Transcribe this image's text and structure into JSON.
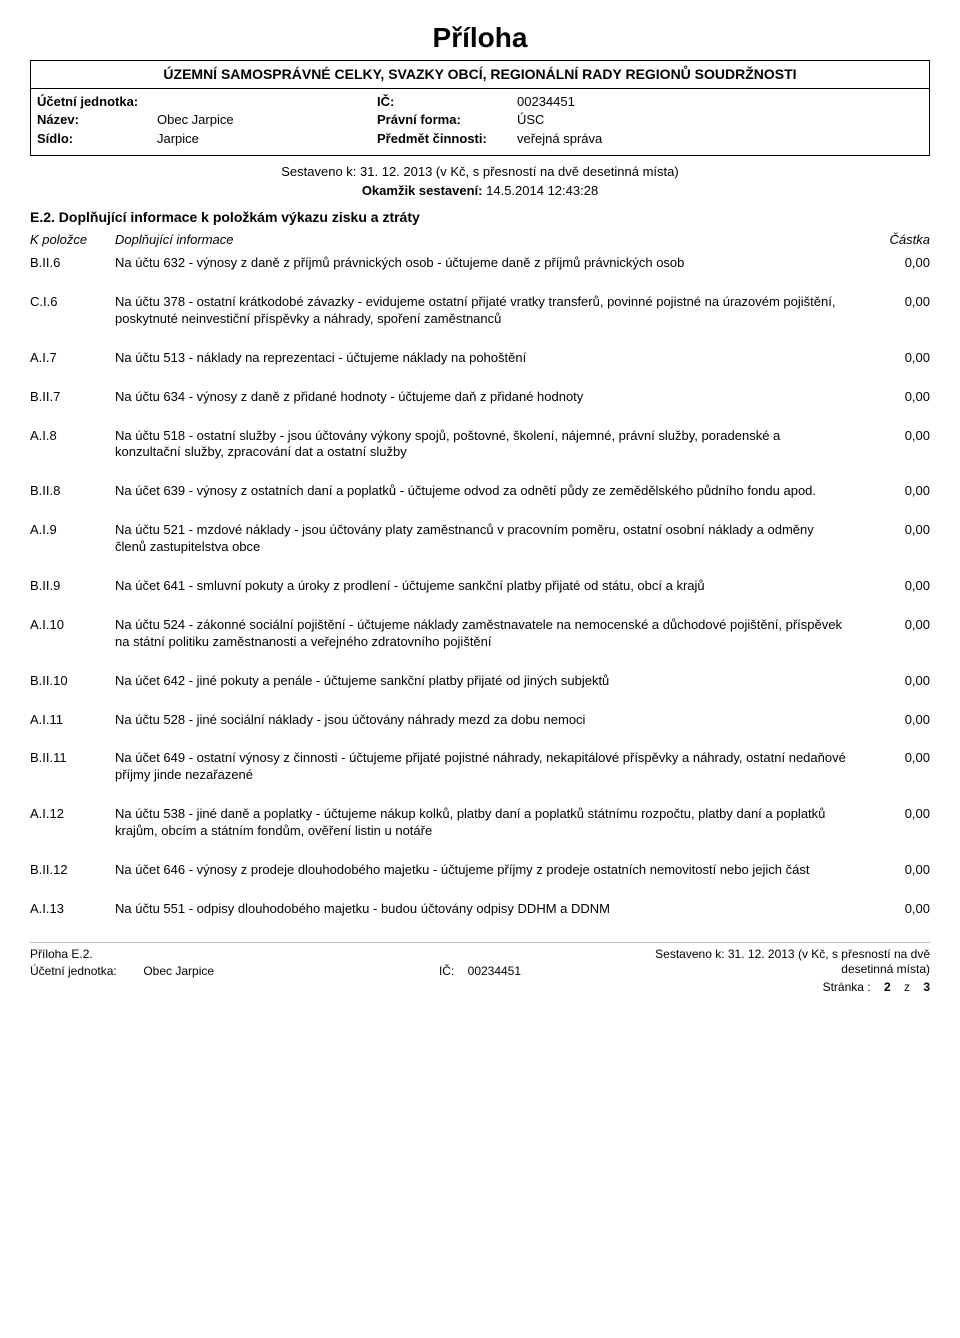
{
  "title": "Příloha",
  "subtitle": "ÚZEMNÍ SAMOSPRÁVNÉ CELKY, SVAZKY OBCÍ, REGIONÁLNÍ RADY REGIONŮ SOUDRŽNOSTI",
  "header": {
    "unit_label": "Účetní jednotka:",
    "name_label": "Název:",
    "name_value": "Obec Jarpice",
    "seat_label": "Sídlo:",
    "seat_value": "Jarpice",
    "ic_label": "IČ:",
    "ic_value": "00234451",
    "legal_label": "Právní forma:",
    "legal_value": "ÚSC",
    "activity_label": "Předmět činnosti:",
    "activity_value": "veřejná správa"
  },
  "compiled": "Sestaveno k: 31. 12. 2013 (v Kč, s přesností na dvě desetinná místa)",
  "moment_label": "Okamžik sestavení:",
  "moment_value": "14.5.2014 12:43:28",
  "section_head": "E.2. Doplňující informace k položkám výkazu zisku a ztráty",
  "cols": {
    "c1": "K položce",
    "c2": "Doplňující informace",
    "c3": "Částka"
  },
  "items": [
    {
      "code": "B.II.6",
      "text": "Na účtu 632 - výnosy z daně z příjmů právnických osob - účtujeme daně z příjmů právnických osob",
      "amount": "0,00"
    },
    {
      "code": "C.I.6",
      "text": "Na účtu 378 - ostatní krátkodobé závazky - evidujeme ostatní přijaté vratky transferů, povinné pojistné na úrazovém pojištění, poskytnuté neinvestiční příspěvky a náhrady, spoření zaměstnanců",
      "amount": "0,00"
    },
    {
      "code": "A.I.7",
      "text": "Na účtu 513 - náklady na reprezentaci - účtujeme náklady na pohoštění",
      "amount": "0,00"
    },
    {
      "code": "B.II.7",
      "text": "Na účtu 634 - výnosy z daně z přidané hodnoty - účtujeme daň z přidané hodnoty",
      "amount": "0,00"
    },
    {
      "code": "A.I.8",
      "text": "Na účtu 518 - ostatní služby - jsou účtovány výkony spojů, poštovné, školení, nájemné, právní služby, poradenské a konzultační služby, zpracování dat a ostatní služby",
      "amount": "0,00"
    },
    {
      "code": "B.II.8",
      "text": "Na účet 639 - výnosy z ostatních daní a poplatků - účtujeme odvod za odnětí půdy ze zemědělského půdního fondu apod.",
      "amount": "0,00"
    },
    {
      "code": "A.I.9",
      "text": "Na účtu 521 - mzdové náklady - jsou účtovány platy zaměstnanců v pracovním poměru, ostatní osobní náklady a odměny členů zastupitelstva obce",
      "amount": "0,00"
    },
    {
      "code": "B.II.9",
      "text": "Na účet 641 - smluvní pokuty a úroky z prodlení - účtujeme sankční platby přijaté od státu, obcí a krajů",
      "amount": "0,00"
    },
    {
      "code": "A.I.10",
      "text": "Na účtu 524 - zákonné sociální pojištění - účtujeme náklady zaměstnavatele na nemocenské a důchodové pojištění, příspěvek na státní politiku zaměstnanosti a veřejného zdratovního pojištění",
      "amount": "0,00"
    },
    {
      "code": "B.II.10",
      "text": "Na účet 642 - jiné pokuty a penále - účtujeme sankční platby přijaté od jiných subjektů",
      "amount": "0,00"
    },
    {
      "code": "A.I.11",
      "text": "Na účtu 528 - jiné sociální náklady - jsou účtovány náhrady mezd za dobu nemoci",
      "amount": "0,00"
    },
    {
      "code": "B.II.11",
      "text": "Na účet 649 - ostatní výnosy z činnosti - účtujeme přijaté pojistné náhrady, nekapitálové příspěvky a náhrady, ostatní nedaňové příjmy jinde nezařazené",
      "amount": "0,00"
    },
    {
      "code": "A.I.12",
      "text": "Na účtu 538 - jiné daně a poplatky - účtujeme nákup kolků, platby daní a poplatků státnímu rozpočtu, platby daní a poplatků krajům, obcím a státním fondům, ověření listin u notáře",
      "amount": "0,00"
    },
    {
      "code": "B.II.12",
      "text": "Na účet 646 - výnosy z prodeje dlouhodobého majetku - účtujeme příjmy z prodeje ostatních nemovitostí nebo jejich část",
      "amount": "0,00"
    },
    {
      "code": "A.I.13",
      "text": "Na účtu 551 - odpisy dlouhodobého majetku - budou účtovány odpisy DDHM a DDNM",
      "amount": "0,00"
    }
  ],
  "footer": {
    "left_label1": "Příloha E.2.",
    "left_label2": "Účetní jednotka:",
    "left_value2": "Obec Jarpice",
    "mid_label": "IČ:",
    "mid_value": "00234451",
    "right1": "Sestaveno k: 31. 12. 2013 (v Kč, s přesností na dvě desetinná místa)",
    "right_label": "Stránka :",
    "right_page": "2",
    "right_of": "z",
    "right_total": "3"
  },
  "style": {
    "title_fontsize": 28,
    "body_fontsize": 13,
    "text_color": "#000000",
    "bg_color": "#ffffff"
  }
}
